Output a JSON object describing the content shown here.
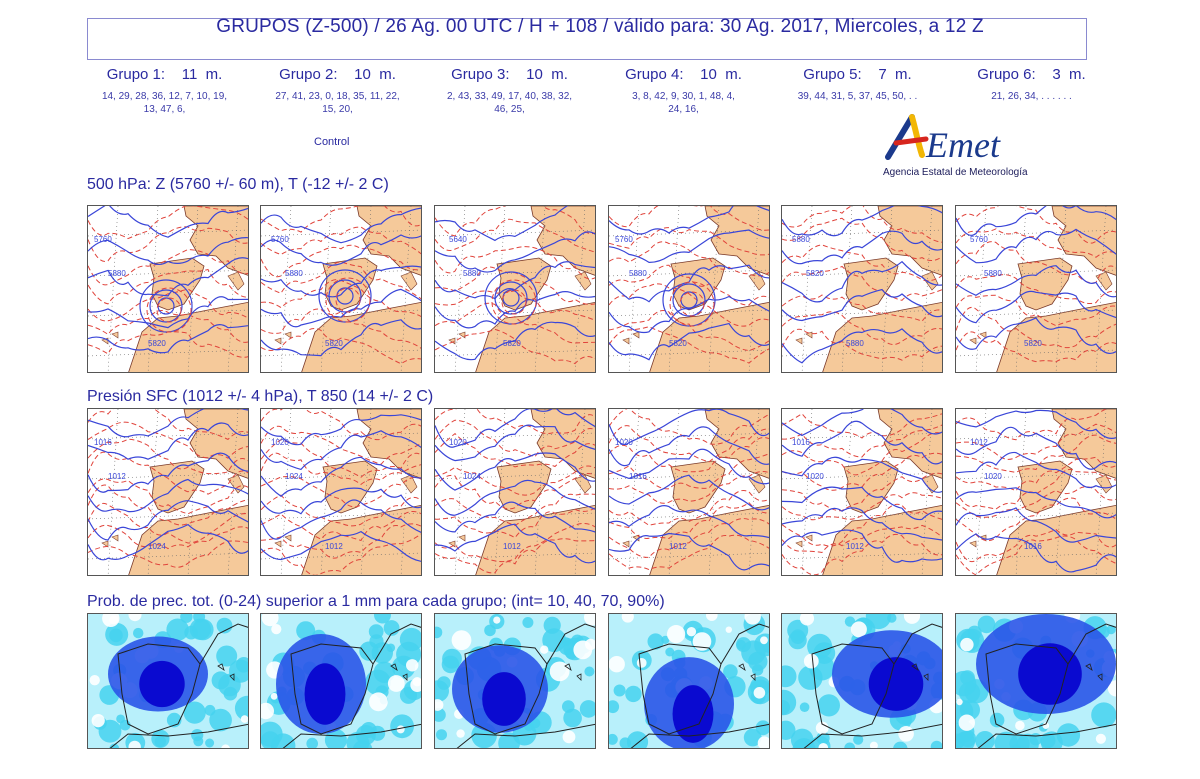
{
  "header": {
    "title": "GRUPOS (Z-500)  /  26 Ag. 00 UTC  /  H + 108  /  válido para: 30 Ag. 2017,  Miercoles, a 12 Z"
  },
  "groups": [
    {
      "label": "Grupo 1:    11  m.",
      "members_line1": "14, 29, 28, 36, 12, 7, 10, 19,",
      "members_line2": "13, 47, 6,"
    },
    {
      "label": "Grupo 2:    10  m.",
      "members_line1": "27, 41, 23, 0, 18, 35, 11, 22,",
      "members_line2": "15, 20,"
    },
    {
      "label": "Grupo 3:    10  m.",
      "members_line1": "2, 43, 33, 49, 17, 40, 38, 32,",
      "members_line2": "46, 25,"
    },
    {
      "label": "Grupo 4:    10  m.",
      "members_line1": "3, 8, 42, 9, 30, 1, 48, 4,",
      "members_line2": "24, 16,"
    },
    {
      "label": "Grupo 5:    7  m.",
      "members_line1": "39, 44, 31, 5, 37, 45, 50, . .",
      "members_line2": ""
    },
    {
      "label": "Grupo 6:    3  m.",
      "members_line1": "21, 26, 34, . . . . . .",
      "members_line2": ""
    }
  ],
  "control_label": "Control",
  "logo": {
    "text": "AEMet",
    "subtitle": "Agencia Estatal de Meteorología",
    "colors": {
      "blue": "#1b3a8c",
      "yellow": "#f2b705",
      "red": "#d7261e"
    }
  },
  "sections": {
    "z500": "500 hPa: Z (5760 +/- 60 m), T (-12 +/- 2 C)",
    "sfc": "Presión SFC (1012 +/- 4 hPa), T 850 (14 +/- 2 C)",
    "prec": "Prob. de prec. tot. (0-24) superior a 1 mm para cada grupo; (int= 10, 40, 70, 90%)"
  },
  "colors": {
    "land": "#f5c99a",
    "sea": "#ffffff",
    "z_contour": "#3a46d8",
    "t_contour": "#e0443c",
    "prob_10": "#b8f0fb",
    "prob_40": "#45d2ee",
    "prob_70": "#2a55e8",
    "prob_90": "#0a0ad0"
  },
  "z500_panels": [
    {
      "labels": [
        "5760",
        "5880",
        "5820"
      ]
    },
    {
      "labels": [
        "5760",
        "5880",
        "5820"
      ]
    },
    {
      "labels": [
        "5640",
        "5880",
        "5820"
      ]
    },
    {
      "labels": [
        "5760",
        "5880",
        "5820"
      ]
    },
    {
      "labels": [
        "5880",
        "5820",
        "5880"
      ]
    },
    {
      "labels": [
        "5760",
        "5880",
        "5820"
      ]
    }
  ],
  "sfc_panels": [
    {
      "labels": [
        "1016",
        "1012",
        "1024"
      ]
    },
    {
      "labels": [
        "1020",
        "1024",
        "1012"
      ]
    },
    {
      "labels": [
        "1020",
        "1024",
        "1012"
      ]
    },
    {
      "labels": [
        "1020",
        "1016",
        "1012"
      ]
    },
    {
      "labels": [
        "1016",
        "1020",
        "1012"
      ]
    },
    {
      "labels": [
        "1012",
        "1020",
        "1016"
      ]
    }
  ]
}
